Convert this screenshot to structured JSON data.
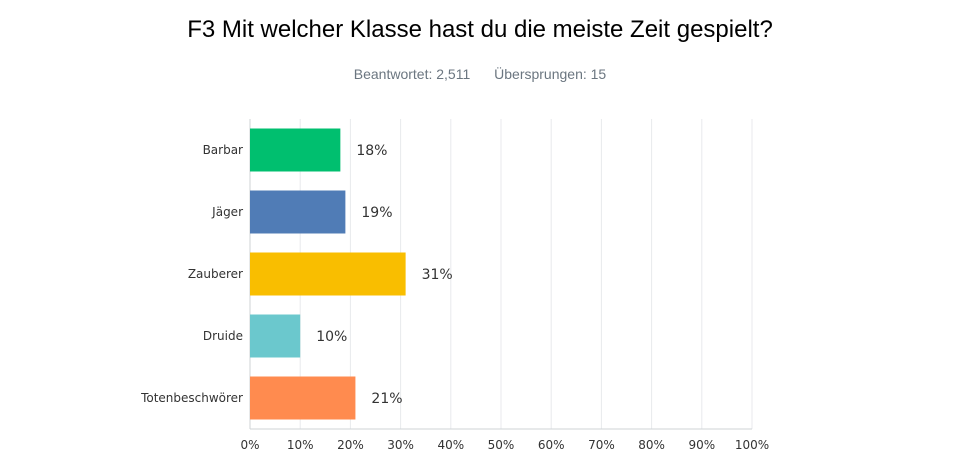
{
  "chart_data": {
    "type": "bar",
    "orientation": "horizontal",
    "title": "F3 Mit welcher Klasse hast du die meiste Zeit gespielt?",
    "stats": {
      "answered": "Beantwortet: 2,511",
      "skipped": "Übersprungen: 15"
    },
    "categories": [
      "Barbar",
      "Jäger",
      "Zauberer",
      "Druide",
      "Totenbeschwörer"
    ],
    "values": [
      18,
      19,
      31,
      10,
      21
    ],
    "value_labels": [
      "18%",
      "19%",
      "31%",
      "10%",
      "21%"
    ],
    "colors": [
      "#00bf6f",
      "#507cb6",
      "#f9be00",
      "#6bc8cd",
      "#ff8b4f"
    ],
    "xlim": [
      0,
      100
    ],
    "x_ticks": [
      "0%",
      "10%",
      "20%",
      "30%",
      "40%",
      "50%",
      "60%",
      "70%",
      "80%",
      "90%",
      "100%"
    ],
    "grid": true,
    "xlabel": "",
    "ylabel": ""
  }
}
